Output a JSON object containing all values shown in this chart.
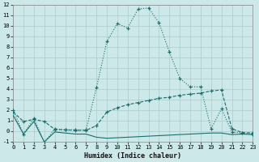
{
  "background_color": "#cce8e8",
  "grid_color": "#aacccc",
  "line_color": "#1a6e6e",
  "x_min": 0,
  "x_max": 23,
  "y_min": -1,
  "y_max": 12,
  "xlabel": "Humidex (Indice chaleur)",
  "series1_x": [
    0,
    1,
    2,
    3,
    4,
    5,
    6,
    7,
    8,
    9,
    10,
    11,
    12,
    13,
    14,
    15,
    16,
    17,
    18,
    19,
    20,
    21,
    22,
    23
  ],
  "series1_y": [
    2.0,
    -0.3,
    1.2,
    -1.1,
    0.2,
    0.1,
    0.1,
    0.1,
    4.1,
    8.5,
    10.2,
    9.8,
    11.6,
    11.7,
    10.3,
    7.5,
    5.0,
    4.2,
    4.2,
    0.2,
    2.1,
    -0.1,
    -0.2,
    -0.3
  ],
  "series2_x": [
    0,
    1,
    2,
    3,
    4,
    5,
    6,
    7,
    8,
    9,
    10,
    11,
    12,
    13,
    14,
    15,
    16,
    17,
    18,
    19,
    20,
    21,
    22,
    23
  ],
  "series2_y": [
    1.8,
    0.9,
    1.1,
    0.9,
    0.15,
    0.1,
    0.05,
    0.05,
    0.5,
    1.8,
    2.2,
    2.5,
    2.7,
    2.9,
    3.1,
    3.2,
    3.4,
    3.5,
    3.6,
    3.8,
    3.9,
    0.2,
    -0.15,
    -0.2
  ],
  "series3_x": [
    0,
    1,
    2,
    3,
    4,
    5,
    6,
    7,
    8,
    9,
    10,
    11,
    12,
    13,
    14,
    15,
    16,
    17,
    18,
    19,
    20,
    21,
    22,
    23
  ],
  "series3_y": [
    1.5,
    -0.3,
    0.9,
    -1.05,
    -0.1,
    -0.2,
    -0.3,
    -0.3,
    -0.6,
    -0.7,
    -0.65,
    -0.6,
    -0.55,
    -0.5,
    -0.45,
    -0.4,
    -0.35,
    -0.3,
    -0.25,
    -0.2,
    -0.2,
    -0.35,
    -0.3,
    -0.35
  ]
}
